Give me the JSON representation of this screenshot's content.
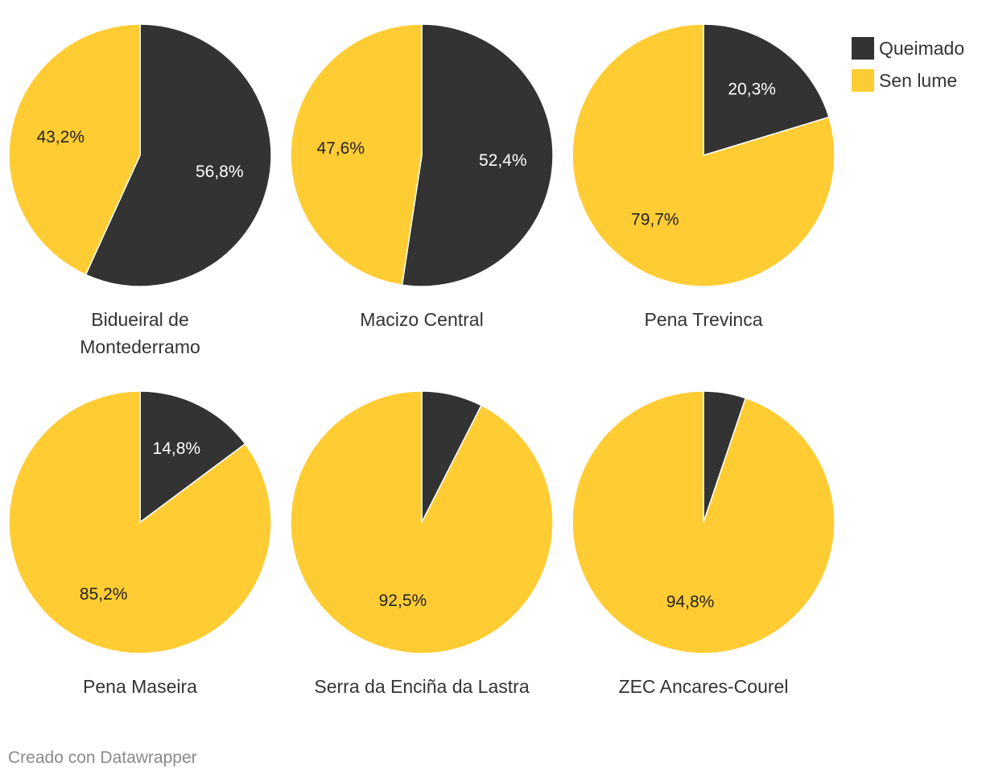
{
  "legend": {
    "items": [
      {
        "label": "Queimado",
        "color": "#333333"
      },
      {
        "label": "Sen lume",
        "color": "#FFCC33"
      }
    ]
  },
  "footer": {
    "credit": "Creado con Datawrapper"
  },
  "chart_data": {
    "type": "pie",
    "series_names": [
      "Queimado",
      "Sen lume"
    ],
    "colors": {
      "Queimado": "#333333",
      "Sen lume": "#FFCC33"
    },
    "legend_position": "top-right",
    "charts": [
      {
        "title": "Bidueiral de Montederramo",
        "values": [
          56.8,
          43.2
        ],
        "labels": [
          "56,8%",
          "43,2%"
        ]
      },
      {
        "title": "Macizo Central",
        "values": [
          52.4,
          47.6
        ],
        "labels": [
          "52,4%",
          "47,6%"
        ]
      },
      {
        "title": "Pena Trevinca",
        "values": [
          20.3,
          79.7
        ],
        "labels": [
          "20,3%",
          "79,7%"
        ]
      },
      {
        "title": "Pena Maseira",
        "values": [
          14.8,
          85.2
        ],
        "labels": [
          "14,8%",
          "85,2%"
        ]
      },
      {
        "title": "Serra da Enciña da Lastra",
        "values": [
          7.5,
          92.5
        ],
        "labels": [
          "",
          "92,5%"
        ]
      },
      {
        "title": "ZEC Ancares-Courel",
        "values": [
          5.2,
          94.8
        ],
        "labels": [
          "",
          "94,8%"
        ]
      }
    ]
  }
}
